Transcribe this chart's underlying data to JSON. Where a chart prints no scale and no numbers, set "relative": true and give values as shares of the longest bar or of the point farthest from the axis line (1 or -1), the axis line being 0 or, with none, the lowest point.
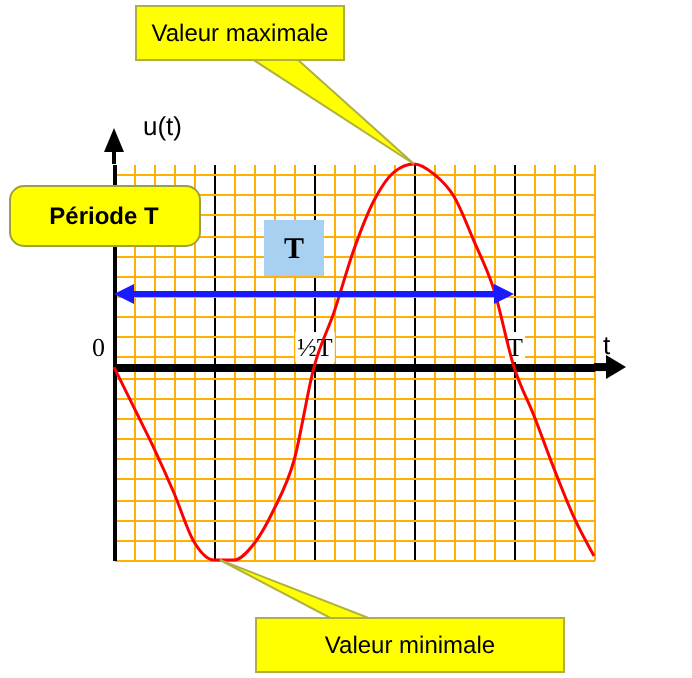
{
  "chart_data": {
    "type": "line",
    "relative": true,
    "xlabel": "t",
    "ylabel": "u(t)",
    "categories": [
      "0",
      null,
      null,
      null,
      null,
      null,
      null,
      null,
      null,
      null,
      "½T",
      null,
      null,
      null,
      null,
      null,
      null,
      null,
      null,
      null,
      "T",
      null,
      null,
      null,
      null
    ],
    "series": [
      {
        "color": "#ff0000",
        "values": [
          0,
          -0.2,
          -0.4,
          -0.62,
          -0.86,
          -0.95,
          -0.95,
          -0.87,
          -0.7,
          -0.46,
          0,
          0.27,
          0.58,
          0.82,
          0.96,
          1,
          0.95,
          0.84,
          0.62,
          0.38,
          0,
          -0.24,
          -0.5,
          -0.74,
          -0.93
        ]
      }
    ],
    "grid": true,
    "annotations": [
      "Valeur maximale",
      "Valeur minimale",
      "Période T",
      "T"
    ]
  }
}
